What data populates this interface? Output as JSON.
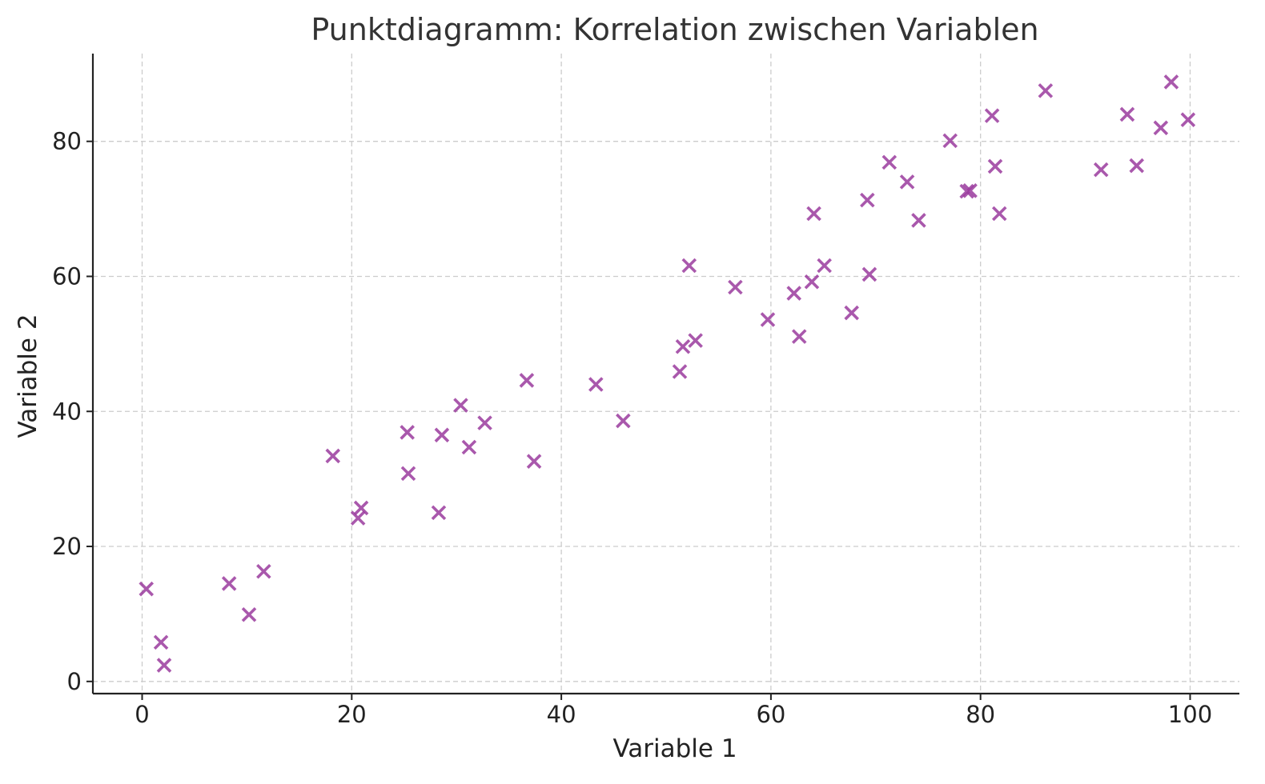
{
  "chart_data": {
    "type": "scatter",
    "title": "Punktdiagramm: Korrelation zwischen Variablen",
    "xlabel": "Variable 1",
    "ylabel": "Variable 2",
    "xlim": [
      -4.7,
      104.7
    ],
    "ylim": [
      -1.8,
      93.0
    ],
    "xticks": [
      0,
      20,
      40,
      60,
      80,
      100
    ],
    "yticks": [
      0,
      20,
      40,
      60,
      80
    ],
    "grid": true,
    "legend": "none",
    "marker": "x",
    "color": "#9b3b9e",
    "points": [
      [
        0.4,
        13.7
      ],
      [
        1.8,
        5.8
      ],
      [
        2.1,
        2.4
      ],
      [
        8.3,
        14.5
      ],
      [
        10.2,
        9.9
      ],
      [
        11.6,
        16.3
      ],
      [
        18.2,
        33.4
      ],
      [
        20.6,
        24.2
      ],
      [
        20.9,
        25.7
      ],
      [
        25.3,
        36.9
      ],
      [
        25.4,
        30.8
      ],
      [
        28.3,
        25.0
      ],
      [
        28.6,
        36.5
      ],
      [
        30.4,
        40.9
      ],
      [
        31.2,
        34.7
      ],
      [
        32.7,
        38.3
      ],
      [
        36.7,
        44.6
      ],
      [
        37.4,
        32.6
      ],
      [
        43.3,
        44.0
      ],
      [
        45.9,
        38.6
      ],
      [
        51.3,
        45.9
      ],
      [
        51.6,
        49.6
      ],
      [
        52.2,
        61.6
      ],
      [
        52.8,
        50.5
      ],
      [
        56.6,
        58.4
      ],
      [
        59.7,
        53.6
      ],
      [
        62.2,
        57.5
      ],
      [
        62.7,
        51.1
      ],
      [
        63.9,
        59.2
      ],
      [
        64.1,
        69.3
      ],
      [
        65.1,
        61.6
      ],
      [
        67.7,
        54.6
      ],
      [
        69.2,
        71.3
      ],
      [
        69.4,
        60.3
      ],
      [
        71.3,
        76.9
      ],
      [
        73.0,
        74.0
      ],
      [
        74.1,
        68.3
      ],
      [
        77.1,
        80.1
      ],
      [
        78.7,
        72.6
      ],
      [
        79.0,
        72.7
      ],
      [
        81.1,
        83.8
      ],
      [
        81.4,
        76.3
      ],
      [
        81.8,
        69.3
      ],
      [
        86.2,
        87.5
      ],
      [
        91.5,
        75.8
      ],
      [
        94.0,
        84.0
      ],
      [
        94.9,
        76.4
      ],
      [
        97.2,
        82.0
      ],
      [
        98.2,
        88.8
      ],
      [
        99.8,
        83.2
      ]
    ]
  }
}
